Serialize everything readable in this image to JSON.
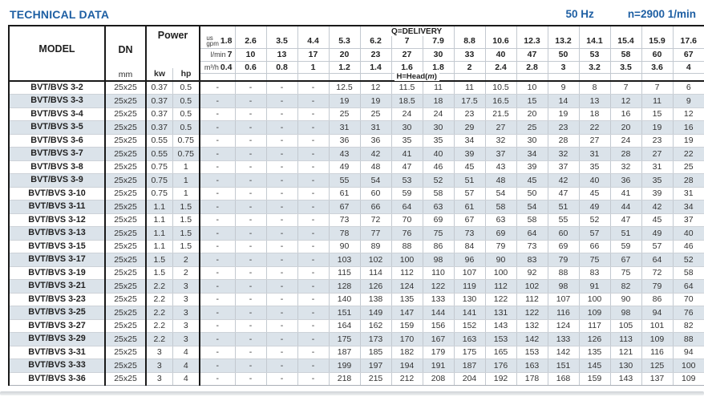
{
  "header": {
    "title": "TECHNICAL DATA",
    "frequency": "50 Hz",
    "speed": "n=2900 1/min"
  },
  "table": {
    "model_header": "MODEL",
    "dn_header": "DN",
    "dn_unit": "mm",
    "power_header": "Power",
    "kw_unit": "kw",
    "hp_unit": "hp",
    "delivery_label": "Q=DELIVERY",
    "head_label": {
      "prefix": "H=Head(",
      "unit": "m",
      "suffix": ")"
    },
    "flow_units": {
      "usgpm_line1": "us",
      "usgpm_line2": "gpm",
      "lmin": "l/min",
      "m3h": "m³/h"
    },
    "delivery": {
      "usgpm": [
        "1.8",
        "2.6",
        "3.5",
        "4.4",
        "5.3",
        "6.2",
        "7",
        "7.9",
        "8.8",
        "10.6",
        "12.3",
        "13.2",
        "14.1",
        "15.4",
        "15.9",
        "17.6"
      ],
      "lmin": [
        "7",
        "10",
        "13",
        "17",
        "20",
        "23",
        "27",
        "30",
        "33",
        "40",
        "47",
        "50",
        "53",
        "58",
        "60",
        "67"
      ],
      "m3h": [
        "0.4",
        "0.6",
        "0.8",
        "1",
        "1.2",
        "1.4",
        "1.6",
        "1.8",
        "2",
        "2.4",
        "2.8",
        "3",
        "3.2",
        "3.5",
        "3.6",
        "4"
      ]
    },
    "rows": [
      {
        "model": "BVT/BVS 3-2",
        "dn": "25x25",
        "kw": "0.37",
        "hp": "0.5",
        "heads": [
          "-",
          "-",
          "-",
          "-",
          "12.5",
          "12",
          "11.5",
          "11",
          "11",
          "10.5",
          "10",
          "9",
          "8",
          "7",
          "7",
          "6"
        ]
      },
      {
        "model": "BVT/BVS 3-3",
        "dn": "25x25",
        "kw": "0.37",
        "hp": "0.5",
        "heads": [
          "-",
          "-",
          "-",
          "-",
          "19",
          "19",
          "18.5",
          "18",
          "17.5",
          "16.5",
          "15",
          "14",
          "13",
          "12",
          "11",
          "9"
        ]
      },
      {
        "model": "BVT/BVS 3-4",
        "dn": "25x25",
        "kw": "0.37",
        "hp": "0.5",
        "heads": [
          "-",
          "-",
          "-",
          "-",
          "25",
          "25",
          "24",
          "24",
          "23",
          "21.5",
          "20",
          "19",
          "18",
          "16",
          "15",
          "12"
        ]
      },
      {
        "model": "BVT/BVS 3-5",
        "dn": "25x25",
        "kw": "0.37",
        "hp": "0.5",
        "heads": [
          "-",
          "-",
          "-",
          "-",
          "31",
          "31",
          "30",
          "30",
          "29",
          "27",
          "25",
          "23",
          "22",
          "20",
          "19",
          "16"
        ]
      },
      {
        "model": "BVT/BVS 3-6",
        "dn": "25x25",
        "kw": "0.55",
        "hp": "0.75",
        "heads": [
          "-",
          "-",
          "-",
          "-",
          "36",
          "36",
          "35",
          "35",
          "34",
          "32",
          "30",
          "28",
          "27",
          "24",
          "23",
          "19"
        ]
      },
      {
        "model": "BVT/BVS 3-7",
        "dn": "25x25",
        "kw": "0.55",
        "hp": "0.75",
        "heads": [
          "-",
          "-",
          "-",
          "-",
          "43",
          "42",
          "41",
          "40",
          "39",
          "37",
          "34",
          "32",
          "31",
          "28",
          "27",
          "22"
        ]
      },
      {
        "model": "BVT/BVS 3-8",
        "dn": "25x25",
        "kw": "0.75",
        "hp": "1",
        "heads": [
          "-",
          "-",
          "-",
          "-",
          "49",
          "48",
          "47",
          "46",
          "45",
          "43",
          "39",
          "37",
          "35",
          "32",
          "31",
          "25"
        ]
      },
      {
        "model": "BVT/BVS 3-9",
        "dn": "25x25",
        "kw": "0.75",
        "hp": "1",
        "heads": [
          "-",
          "-",
          "-",
          "-",
          "55",
          "54",
          "53",
          "52",
          "51",
          "48",
          "45",
          "42",
          "40",
          "36",
          "35",
          "28"
        ]
      },
      {
        "model": "BVT/BVS 3-10",
        "dn": "25x25",
        "kw": "0.75",
        "hp": "1",
        "heads": [
          "-",
          "-",
          "-",
          "-",
          "61",
          "60",
          "59",
          "58",
          "57",
          "54",
          "50",
          "47",
          "45",
          "41",
          "39",
          "31"
        ]
      },
      {
        "model": "BVT/BVS 3-11",
        "dn": "25x25",
        "kw": "1.1",
        "hp": "1.5",
        "heads": [
          "-",
          "-",
          "-",
          "-",
          "67",
          "66",
          "64",
          "63",
          "61",
          "58",
          "54",
          "51",
          "49",
          "44",
          "42",
          "34"
        ]
      },
      {
        "model": "BVT/BVS 3-12",
        "dn": "25x25",
        "kw": "1.1",
        "hp": "1.5",
        "heads": [
          "-",
          "-",
          "-",
          "-",
          "73",
          "72",
          "70",
          "69",
          "67",
          "63",
          "58",
          "55",
          "52",
          "47",
          "45",
          "37"
        ]
      },
      {
        "model": "BVT/BVS 3-13",
        "dn": "25x25",
        "kw": "1.1",
        "hp": "1.5",
        "heads": [
          "-",
          "-",
          "-",
          "-",
          "78",
          "77",
          "76",
          "75",
          "73",
          "69",
          "64",
          "60",
          "57",
          "51",
          "49",
          "40"
        ]
      },
      {
        "model": "BVT/BVS 3-15",
        "dn": "25x25",
        "kw": "1.1",
        "hp": "1.5",
        "heads": [
          "-",
          "-",
          "-",
          "-",
          "90",
          "89",
          "88",
          "86",
          "84",
          "79",
          "73",
          "69",
          "66",
          "59",
          "57",
          "46"
        ]
      },
      {
        "model": "BVT/BVS 3-17",
        "dn": "25x25",
        "kw": "1.5",
        "hp": "2",
        "heads": [
          "-",
          "-",
          "-",
          "-",
          "103",
          "102",
          "100",
          "98",
          "96",
          "90",
          "83",
          "79",
          "75",
          "67",
          "64",
          "52"
        ]
      },
      {
        "model": "BVT/BVS 3-19",
        "dn": "25x25",
        "kw": "1.5",
        "hp": "2",
        "heads": [
          "-",
          "-",
          "-",
          "-",
          "115",
          "114",
          "112",
          "110",
          "107",
          "100",
          "92",
          "88",
          "83",
          "75",
          "72",
          "58"
        ]
      },
      {
        "model": "BVT/BVS 3-21",
        "dn": "25x25",
        "kw": "2.2",
        "hp": "3",
        "heads": [
          "-",
          "-",
          "-",
          "-",
          "128",
          "126",
          "124",
          "122",
          "119",
          "112",
          "102",
          "98",
          "91",
          "82",
          "79",
          "64"
        ]
      },
      {
        "model": "BVT/BVS 3-23",
        "dn": "25x25",
        "kw": "2.2",
        "hp": "3",
        "heads": [
          "-",
          "-",
          "-",
          "-",
          "140",
          "138",
          "135",
          "133",
          "130",
          "122",
          "112",
          "107",
          "100",
          "90",
          "86",
          "70"
        ]
      },
      {
        "model": "BVT/BVS 3-25",
        "dn": "25x25",
        "kw": "2.2",
        "hp": "3",
        "heads": [
          "-",
          "-",
          "-",
          "-",
          "151",
          "149",
          "147",
          "144",
          "141",
          "131",
          "122",
          "116",
          "109",
          "98",
          "94",
          "76"
        ]
      },
      {
        "model": "BVT/BVS 3-27",
        "dn": "25x25",
        "kw": "2.2",
        "hp": "3",
        "heads": [
          "-",
          "-",
          "-",
          "-",
          "164",
          "162",
          "159",
          "156",
          "152",
          "143",
          "132",
          "124",
          "117",
          "105",
          "101",
          "82"
        ]
      },
      {
        "model": "BVT/BVS 3-29",
        "dn": "25x25",
        "kw": "2.2",
        "hp": "3",
        "heads": [
          "-",
          "-",
          "-",
          "-",
          "175",
          "173",
          "170",
          "167",
          "163",
          "153",
          "142",
          "133",
          "126",
          "113",
          "109",
          "88"
        ]
      },
      {
        "model": "BVT/BVS 3-31",
        "dn": "25x25",
        "kw": "3",
        "hp": "4",
        "heads": [
          "-",
          "-",
          "-",
          "-",
          "187",
          "185",
          "182",
          "179",
          "175",
          "165",
          "153",
          "142",
          "135",
          "121",
          "116",
          "94"
        ]
      },
      {
        "model": "BVT/BVS 3-33",
        "dn": "25x25",
        "kw": "3",
        "hp": "4",
        "heads": [
          "-",
          "-",
          "-",
          "-",
          "199",
          "197",
          "194",
          "191",
          "187",
          "176",
          "163",
          "151",
          "145",
          "130",
          "125",
          "100"
        ]
      },
      {
        "model": "BVT/BVS 3-36",
        "dn": "25x25",
        "kw": "3",
        "hp": "4",
        "heads": [
          "-",
          "-",
          "-",
          "-",
          "218",
          "215",
          "212",
          "208",
          "204",
          "192",
          "178",
          "168",
          "159",
          "143",
          "137",
          "109"
        ]
      }
    ]
  }
}
